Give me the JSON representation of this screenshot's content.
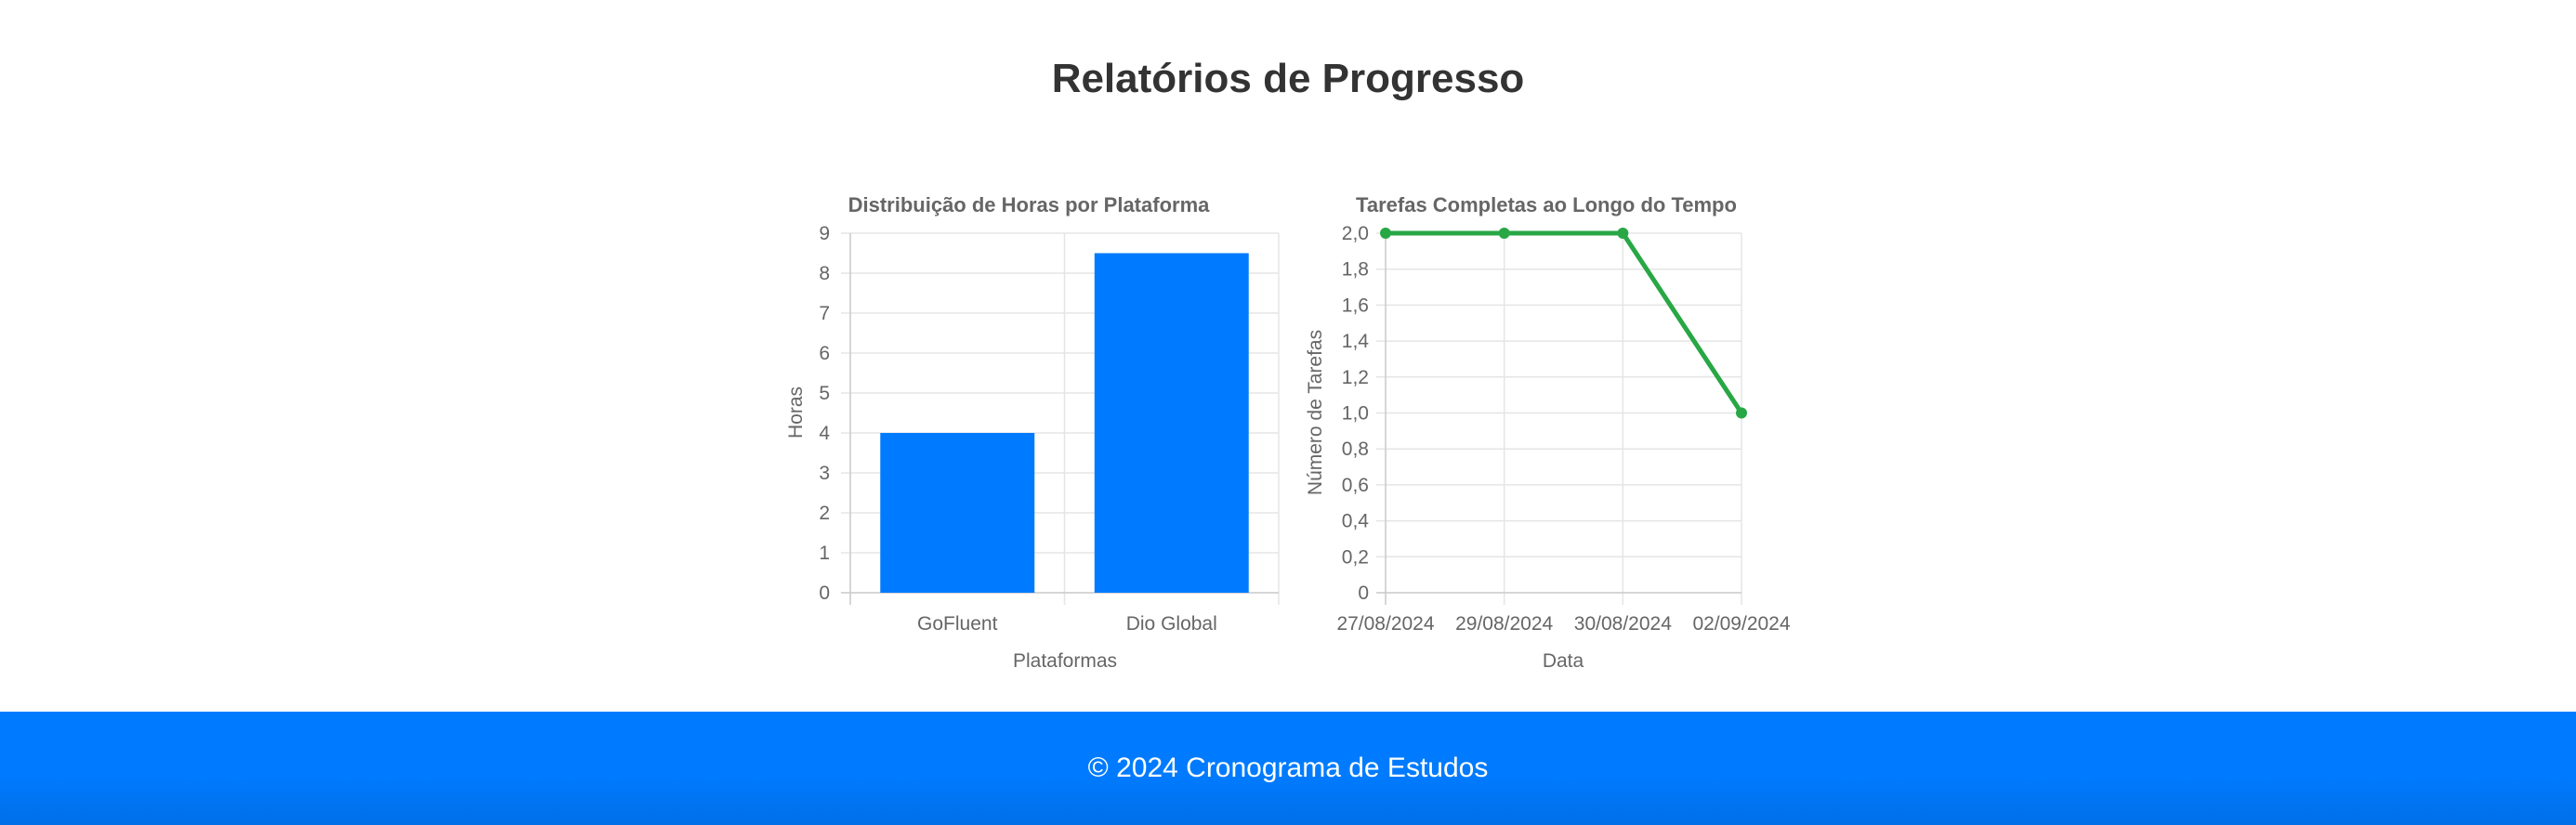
{
  "page": {
    "title": "Relatórios de Progresso"
  },
  "footer": {
    "text": "© 2024 Cronograma de Estudos"
  },
  "colors": {
    "bar": "#007bff",
    "line": "#28a745",
    "grid": "#e5e5e5",
    "text": "#666666"
  },
  "chart_data": [
    {
      "type": "bar",
      "title": "Distribuição de Horas por Plataforma",
      "xlabel": "Plataformas",
      "ylabel": "Horas",
      "categories": [
        "GoFluent",
        "Dio Global"
      ],
      "values": [
        4,
        8.5
      ],
      "ylim": [
        0,
        9
      ],
      "yticks": [
        "0",
        "1",
        "2",
        "3",
        "4",
        "5",
        "6",
        "7",
        "8",
        "9"
      ],
      "grid": true,
      "legend": "none"
    },
    {
      "type": "line",
      "title": "Tarefas Completas ao Longo do Tempo",
      "xlabel": "Data",
      "ylabel": "Número de Tarefas",
      "categories": [
        "27/08/2024",
        "29/08/2024",
        "30/08/2024",
        "02/09/2024"
      ],
      "values": [
        2,
        2,
        2,
        1
      ],
      "ylim": [
        0,
        2
      ],
      "yticks": [
        "0",
        "0,2",
        "0,4",
        "0,6",
        "0,8",
        "1,0",
        "1,2",
        "1,4",
        "1,6",
        "1,8",
        "2,0"
      ],
      "grid": true,
      "legend": "none"
    }
  ]
}
